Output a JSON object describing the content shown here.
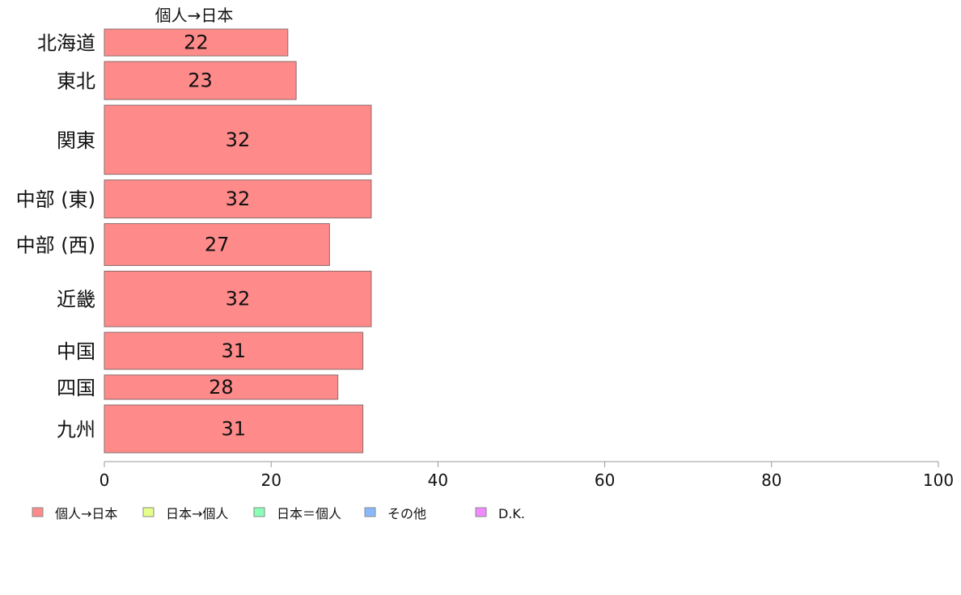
{
  "chart_data": {
    "type": "bar",
    "orientation": "horizontal",
    "column_title": "個人→日本",
    "categories": [
      "北海道",
      "東北",
      "関東",
      "中部 (東)",
      "中部 (西)",
      "近畿",
      "中国",
      "四国",
      "九州"
    ],
    "relative_bar_widths": [
      0.55,
      0.78,
      1.42,
      0.78,
      0.86,
      1.14,
      0.76,
      0.5,
      0.98
    ],
    "series": [
      {
        "name": "個人→日本",
        "values": [
          22,
          23,
          32,
          32,
          27,
          32,
          31,
          28,
          31
        ],
        "color": "#ff8a8a"
      }
    ],
    "xlim": [
      0,
      100
    ],
    "xticks": [
      0,
      20,
      40,
      60,
      80,
      100
    ],
    "legend": {
      "position": "bottom-left",
      "items": [
        {
          "label": "個人→日本",
          "color": "#ff8a8a"
        },
        {
          "label": "日本→個人",
          "color": "#e6ff8a"
        },
        {
          "label": "日本＝個人",
          "color": "#8affb8"
        },
        {
          "label": "その他",
          "color": "#8ab8ff"
        },
        {
          "label": "D.K.",
          "color": "#f08aff"
        }
      ]
    }
  }
}
